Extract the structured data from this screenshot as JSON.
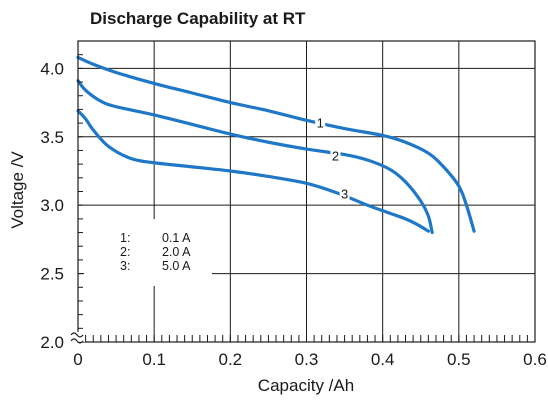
{
  "chart_data": {
    "type": "line",
    "title": "Discharge Capability at RT",
    "xlabel": "Capacity /Ah",
    "ylabel": "Voltage /V",
    "xlim": [
      0,
      0.6
    ],
    "ylim": [
      2.0,
      4.2
    ],
    "x_ticks": [
      "0",
      "0.1",
      "0.2",
      "0.3",
      "0.4",
      "0.5",
      "0.6"
    ],
    "y_ticks": [
      "2.0",
      "2.5",
      "3.0",
      "3.5",
      "4.0"
    ],
    "grid": true,
    "y_axis_break": true,
    "series_color": "#1f77c8",
    "legend": {
      "placement": "lower-left",
      "entries": [
        {
          "key": "1:",
          "label": "0.1 A"
        },
        {
          "key": "2:",
          "label": "2.0 A"
        },
        {
          "key": "3:",
          "label": "5.0 A"
        }
      ]
    },
    "series": [
      {
        "name": "1",
        "label_at": [
          0.318,
          3.6
        ],
        "x": [
          0,
          0.02,
          0.05,
          0.1,
          0.15,
          0.2,
          0.25,
          0.3,
          0.35,
          0.4,
          0.43,
          0.46,
          0.48,
          0.5,
          0.51,
          0.52
        ],
        "y": [
          4.08,
          4.03,
          3.97,
          3.89,
          3.82,
          3.75,
          3.69,
          3.62,
          3.56,
          3.51,
          3.46,
          3.38,
          3.28,
          3.14,
          3.0,
          2.81
        ]
      },
      {
        "name": "2",
        "label_at": [
          0.338,
          3.36
        ],
        "x": [
          0,
          0.01,
          0.03,
          0.05,
          0.1,
          0.15,
          0.2,
          0.25,
          0.3,
          0.35,
          0.38,
          0.41,
          0.43,
          0.45,
          0.46,
          0.465
        ],
        "y": [
          3.91,
          3.84,
          3.76,
          3.72,
          3.66,
          3.59,
          3.52,
          3.46,
          3.41,
          3.37,
          3.33,
          3.26,
          3.17,
          3.03,
          2.92,
          2.8
        ]
      },
      {
        "name": "3",
        "label_at": [
          0.35,
          3.08
        ],
        "x": [
          0,
          0.01,
          0.02,
          0.04,
          0.07,
          0.1,
          0.15,
          0.2,
          0.25,
          0.3,
          0.34,
          0.38,
          0.41,
          0.43,
          0.445,
          0.46
        ],
        "y": [
          3.69,
          3.63,
          3.55,
          3.43,
          3.34,
          3.31,
          3.28,
          3.25,
          3.21,
          3.16,
          3.09,
          3.0,
          2.94,
          2.9,
          2.86,
          2.81
        ]
      }
    ]
  }
}
